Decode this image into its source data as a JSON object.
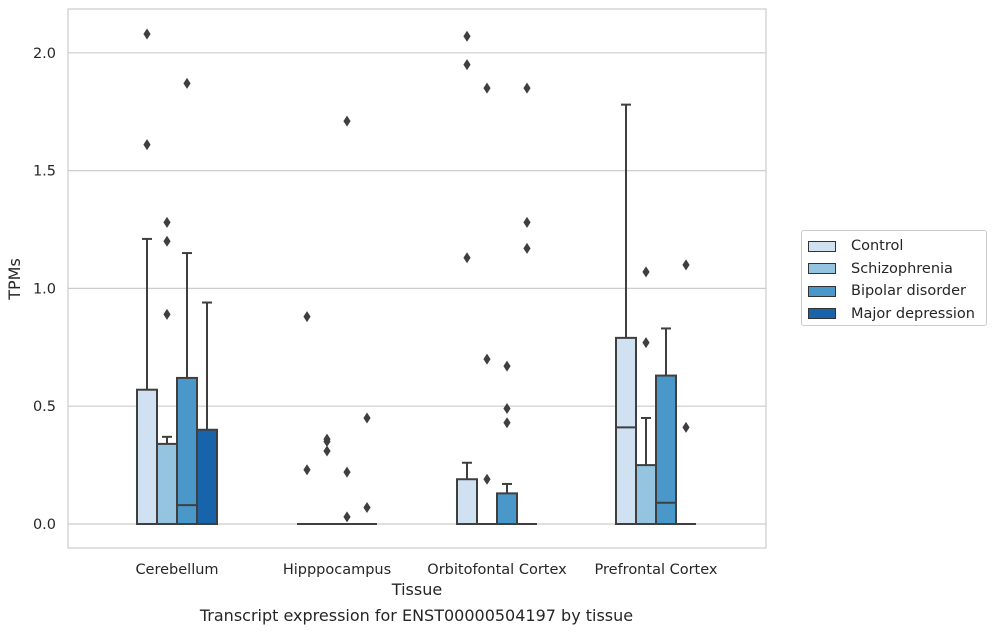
{
  "chart_data": {
    "type": "box",
    "xlabel": "Tissue",
    "ylabel": "TPMs",
    "ylim": [
      -0.1,
      2.2
    ],
    "yticks": [
      "0.0",
      "0.5",
      "1.0",
      "1.5",
      "2.0"
    ],
    "ytick_values": [
      0,
      0.5,
      1.0,
      1.5,
      2.0
    ],
    "grid": "horizontal",
    "legend_position": "right",
    "categories": [
      "Cerebellum",
      "Hipppocampus",
      "Orbitofontal Cortex",
      "Prefrontal Cortex"
    ],
    "series": [
      {
        "name": "Control",
        "color": "#d0e1f2",
        "boxes": [
          {
            "q1": 0,
            "median": 0,
            "q3": 0.57,
            "whisker_low": 0,
            "whisker_high": 1.21,
            "outliers": [
              1.61,
              2.08
            ]
          },
          {
            "q1": 0,
            "median": 0,
            "q3": 0,
            "whisker_low": 0,
            "whisker_high": 0,
            "outliers": [
              0.23,
              0.88
            ]
          },
          {
            "q1": 0,
            "median": 0,
            "q3": 0.19,
            "whisker_low": 0,
            "whisker_high": 0.26,
            "outliers": [
              1.13,
              1.95,
              2.07
            ]
          },
          {
            "q1": 0,
            "median": 0.41,
            "q3": 0.79,
            "whisker_low": 0,
            "whisker_high": 1.78,
            "outliers": []
          }
        ]
      },
      {
        "name": "Schizophrenia",
        "color": "#94c4df",
        "boxes": [
          {
            "q1": 0,
            "median": 0,
            "q3": 0.34,
            "whisker_low": 0,
            "whisker_high": 0.37,
            "outliers": [
              0.89,
              1.2,
              1.28
            ]
          },
          {
            "q1": 0,
            "median": 0,
            "q3": 0,
            "whisker_low": 0,
            "whisker_high": 0,
            "outliers": [
              0.31,
              0.35,
              0.36
            ]
          },
          {
            "q1": 0,
            "median": 0,
            "q3": 0,
            "whisker_low": 0,
            "whisker_high": 0,
            "outliers": [
              0.19,
              0.7,
              1.85
            ]
          },
          {
            "q1": 0,
            "median": 0,
            "q3": 0.25,
            "whisker_low": 0,
            "whisker_high": 0.45,
            "outliers": [
              0.77,
              1.07
            ]
          }
        ]
      },
      {
        "name": "Bipolar disorder",
        "color": "#4a98c9",
        "boxes": [
          {
            "q1": 0,
            "median": 0.08,
            "q3": 0.62,
            "whisker_low": 0,
            "whisker_high": 1.15,
            "outliers": [
              1.87
            ]
          },
          {
            "q1": 0,
            "median": 0,
            "q3": 0,
            "whisker_low": 0,
            "whisker_high": 0,
            "outliers": [
              0.03,
              0.22,
              1.71
            ]
          },
          {
            "q1": 0,
            "median": 0,
            "q3": 0.13,
            "whisker_low": 0,
            "whisker_high": 0.17,
            "outliers": [
              0.43,
              0.49,
              0.67
            ]
          },
          {
            "q1": 0,
            "median": 0.09,
            "q3": 0.63,
            "whisker_low": 0,
            "whisker_high": 0.83,
            "outliers": []
          }
        ]
      },
      {
        "name": "Major depression",
        "color": "#1764ab",
        "boxes": [
          {
            "q1": 0,
            "median": 0,
            "q3": 0.4,
            "whisker_low": 0,
            "whisker_high": 0.94,
            "outliers": []
          },
          {
            "q1": 0,
            "median": 0,
            "q3": 0,
            "whisker_low": 0,
            "whisker_high": 0,
            "outliers": [
              0.07,
              0.45
            ]
          },
          {
            "q1": 0,
            "median": 0,
            "q3": 0,
            "whisker_low": 0,
            "whisker_high": 0,
            "outliers": [
              1.17,
              1.28,
              1.85
            ]
          },
          {
            "q1": 0,
            "median": 0,
            "q3": 0,
            "whisker_low": 0,
            "whisker_high": 0,
            "outliers": [
              0.41,
              1.1
            ]
          }
        ]
      }
    ]
  },
  "caption": "Transcript expression for ENST00000504197 by tissue"
}
